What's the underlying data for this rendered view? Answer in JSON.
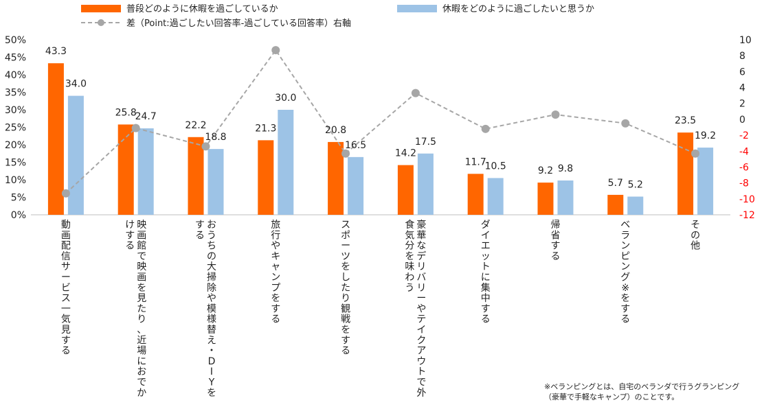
{
  "chart_data": {
    "type": "bar",
    "legend": {
      "usual": "普段どのように休暇を過ごしているか",
      "wish": "休暇をどのように過ごしたいと思うか",
      "diff": "差（Point:過ごしたい回答率-過ごしている回答率）右軸"
    },
    "categories": [
      "動画配信サービス一気見する",
      "映画館で映画を見たり、近場におでかけする",
      "おうちの大掃除や模様替え・DIYをする",
      "旅行やキャンプをする",
      "スポーツをしたり観戦をする",
      "豪華なデリバリーやテイクアウトで外食気分を味わう",
      "ダイエットに集中する",
      "帰省する",
      "ベランピング※をする",
      "その他"
    ],
    "category_lines": [
      [
        "動画配信サービス一気見する"
      ],
      [
        "映画館で映画を見たり、近場におでか",
        "けする"
      ],
      [
        "おうちの大掃除や模様替え・DIYを",
        "する"
      ],
      [
        "旅行やキャンプをする"
      ],
      [
        "スポーツをしたり観戦をする"
      ],
      [
        "豪華なデリバリーやテイクアウトで外",
        "食気分を味わう"
      ],
      [
        "ダイエットに集中する"
      ],
      [
        "帰省する"
      ],
      [
        "ベランピング※をする"
      ],
      [
        "その他"
      ]
    ],
    "series": [
      {
        "name": "普段どのように休暇を過ごしているか",
        "color": "#FF6600",
        "values": [
          43.3,
          25.8,
          22.2,
          21.3,
          20.8,
          14.2,
          11.7,
          9.2,
          5.7,
          23.5
        ]
      },
      {
        "name": "休暇をどのように過ごしたいと思うか",
        "color": "#9DC3E6",
        "values": [
          34.0,
          24.7,
          18.8,
          30.0,
          16.5,
          17.5,
          10.5,
          9.8,
          5.2,
          19.2
        ]
      }
    ],
    "value_labels": {
      "usual": [
        "43.3",
        "25.8",
        "22.2",
        "21.3",
        "20.8",
        "14.2",
        "11.7",
        "9.2",
        "5.7",
        "23.5"
      ],
      "wish": [
        "34.0",
        "24.7",
        "18.8",
        "30.0",
        "16.5",
        "17.5",
        "10.5",
        "9.8",
        "5.2",
        "19.2"
      ]
    },
    "diff_series": {
      "name": "差（Point:過ごしたい回答率-過ごしている回答率）右軸",
      "color": "#A6A6A6",
      "values": [
        -9.3,
        -1.1,
        -3.4,
        8.7,
        -4.3,
        3.3,
        -1.2,
        0.6,
        -0.5,
        -4.3
      ],
      "axis": "right"
    },
    "y_left": {
      "min": 0,
      "max": 50,
      "ticks": [
        "0%",
        "5%",
        "10%",
        "15%",
        "20%",
        "25%",
        "30%",
        "35%",
        "40%",
        "45%",
        "50%"
      ]
    },
    "y_right": {
      "min": -12,
      "max": 10,
      "ticks": [
        "10",
        "8",
        "6",
        "4",
        "2",
        "0",
        "-2",
        "-4",
        "-6",
        "-8",
        "-10",
        "-12"
      ]
    },
    "right_negative_color": "#FF0000",
    "note": [
      "※ベランピングとは、自宅のベランダで行うグランピング",
      "（豪華で手軽なキャンプ）のことです。"
    ]
  }
}
